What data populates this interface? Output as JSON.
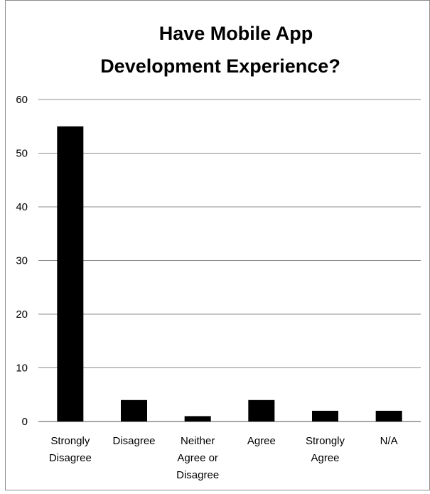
{
  "chart_data": {
    "type": "bar",
    "title_lines": [
      "Have Mobile App",
      "Development Experience?"
    ],
    "categories": [
      [
        "Strongly",
        "Disagree"
      ],
      [
        "Disagree"
      ],
      [
        "Neither",
        "Agree or",
        "Disagree"
      ],
      [
        "Agree"
      ],
      [
        "Strongly",
        "Agree"
      ],
      [
        "N/A"
      ]
    ],
    "values": [
      55,
      4,
      1,
      4,
      2,
      2
    ],
    "ylim": [
      0,
      60
    ],
    "yticks": [
      "0",
      "10",
      "20",
      "30",
      "40",
      "50",
      "60"
    ],
    "grid": true,
    "legend": "none",
    "colors": {
      "bar": "#000000",
      "grid": "#8c8c8c",
      "text": "#000000",
      "frame": "#8c8c8c"
    }
  }
}
